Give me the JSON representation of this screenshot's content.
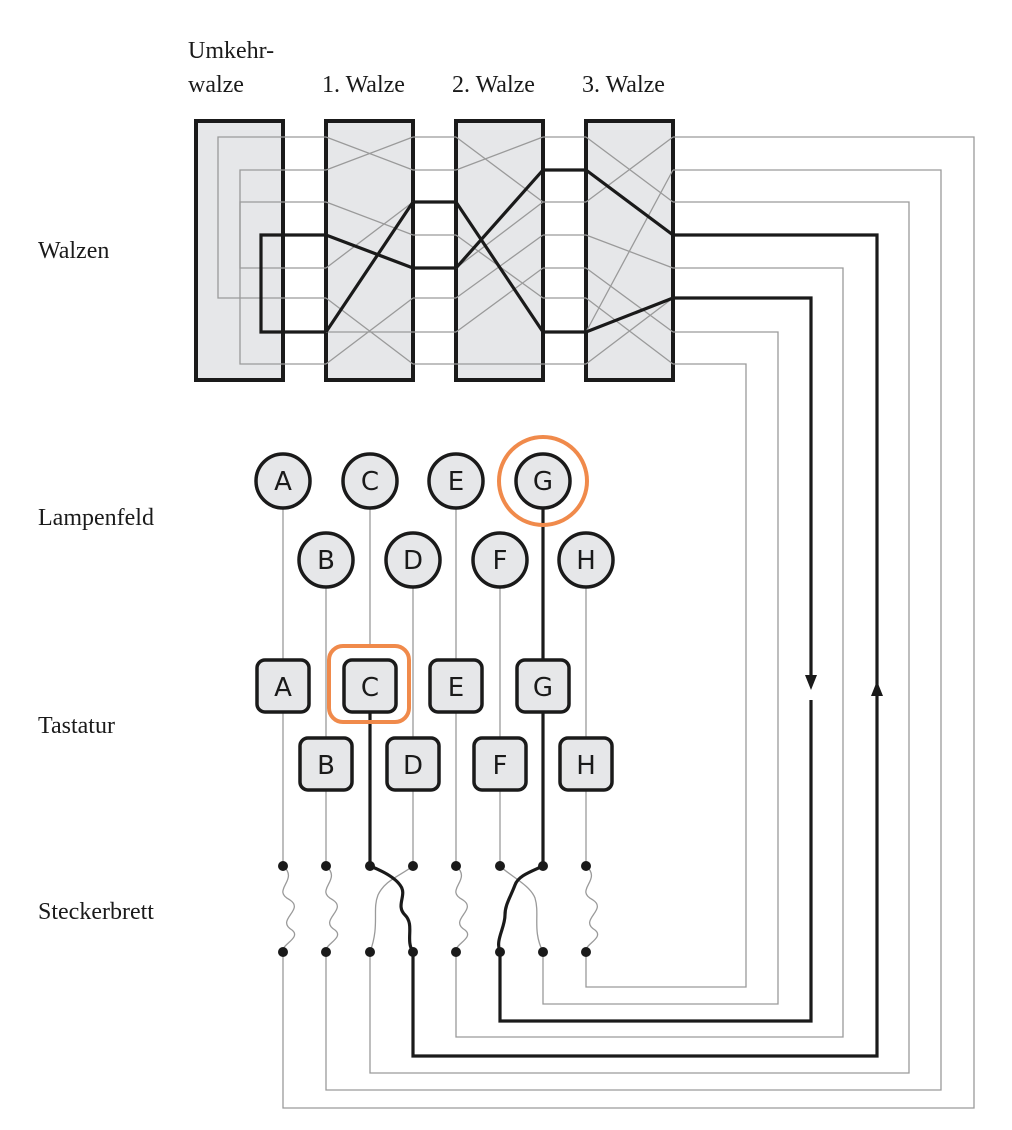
{
  "labels": {
    "reflector_line1": "Umkehr-",
    "reflector_line2": "walze",
    "rotor1": "1. Walze",
    "rotor2": "2. Walze",
    "rotor3": "3. Walze",
    "walzen": "Walzen",
    "lampenfeld": "Lampenfeld",
    "tastatur": "Tastatur",
    "steckerbrett": "Steckerbrett"
  },
  "lamps": {
    "top_row": [
      "A",
      "C",
      "E",
      "G"
    ],
    "bottom_row": [
      "B",
      "D",
      "F",
      "H"
    ]
  },
  "keys": {
    "top_row": [
      "A",
      "C",
      "E",
      "G"
    ],
    "bottom_row": [
      "B",
      "D",
      "F",
      "H"
    ]
  },
  "highlight": {
    "pressed_key": "C",
    "lit_lamp": "G",
    "color": "#f08a4b"
  },
  "colors": {
    "part_fill": "#e6e7e9",
    "outline": "#1a1a1a",
    "wire_thin": "#9a9a9a"
  }
}
